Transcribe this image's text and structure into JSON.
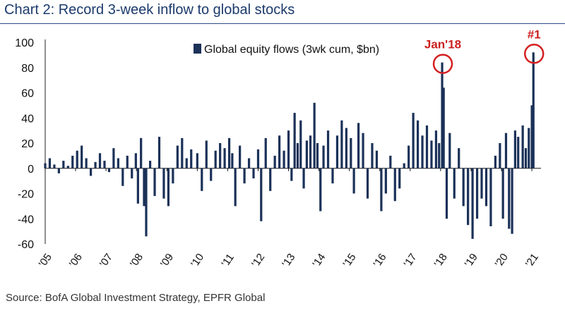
{
  "header": {
    "title": "Chart 2: Record 3-week inflow to global stocks"
  },
  "footer": {
    "source": "Source: BofA Global Investment Strategy, EPFR Global"
  },
  "colors": {
    "bar": "#1b3158",
    "annotation": "#d42020",
    "title": "#1b3a6b"
  },
  "chart_data": {
    "type": "bar",
    "legend": {
      "label": "Global equity flows (3wk cum, $bn)",
      "placement": "top-center"
    },
    "ylim": [
      -60,
      100
    ],
    "yticks": [
      100,
      80,
      60,
      40,
      20,
      0,
      -20,
      -40,
      -60
    ],
    "xlim": [
      2005.0,
      2021.3
    ],
    "xticks": [
      {
        "label": "'05",
        "year": 2005
      },
      {
        "label": "'06",
        "year": 2006
      },
      {
        "label": "'07",
        "year": 2007
      },
      {
        "label": "'08",
        "year": 2008
      },
      {
        "label": "'09",
        "year": 2009
      },
      {
        "label": "'10",
        "year": 2010
      },
      {
        "label": "'11",
        "year": 2011
      },
      {
        "label": "'12",
        "year": 2012
      },
      {
        "label": "'13",
        "year": 2013
      },
      {
        "label": "'14",
        "year": 2014
      },
      {
        "label": "'15",
        "year": 2015
      },
      {
        "label": "'16",
        "year": 2016
      },
      {
        "label": "'17",
        "year": 2017
      },
      {
        "label": "'18",
        "year": 2018
      },
      {
        "label": "'19",
        "year": 2019
      },
      {
        "label": "'20",
        "year": 2020
      },
      {
        "label": "'21",
        "year": 2021
      }
    ],
    "series": [
      {
        "values": [
          [
            2005.0,
            4
          ],
          [
            2005.15,
            8
          ],
          [
            2005.3,
            3
          ],
          [
            2005.45,
            -4
          ],
          [
            2005.6,
            6
          ],
          [
            2005.75,
            2
          ],
          [
            2005.9,
            10
          ],
          [
            2006.05,
            14
          ],
          [
            2006.2,
            18
          ],
          [
            2006.35,
            8
          ],
          [
            2006.5,
            -6
          ],
          [
            2006.65,
            5
          ],
          [
            2006.8,
            12
          ],
          [
            2006.95,
            6
          ],
          [
            2007.1,
            -3
          ],
          [
            2007.25,
            16
          ],
          [
            2007.4,
            8
          ],
          [
            2007.55,
            -14
          ],
          [
            2007.7,
            10
          ],
          [
            2007.85,
            -8
          ],
          [
            2007.98,
            12
          ],
          [
            2008.05,
            -28
          ],
          [
            2008.15,
            24
          ],
          [
            2008.25,
            -30
          ],
          [
            2008.32,
            -54
          ],
          [
            2008.45,
            6
          ],
          [
            2008.6,
            -22
          ],
          [
            2008.75,
            25
          ],
          [
            2008.9,
            -24
          ],
          [
            2009.05,
            -30
          ],
          [
            2009.2,
            -12
          ],
          [
            2009.35,
            18
          ],
          [
            2009.5,
            24
          ],
          [
            2009.65,
            8
          ],
          [
            2009.8,
            15
          ],
          [
            2010.0,
            12
          ],
          [
            2010.15,
            -18
          ],
          [
            2010.3,
            22
          ],
          [
            2010.45,
            -10
          ],
          [
            2010.6,
            14
          ],
          [
            2010.75,
            20
          ],
          [
            2010.9,
            16
          ],
          [
            2011.05,
            24
          ],
          [
            2011.15,
            12
          ],
          [
            2011.25,
            -30
          ],
          [
            2011.4,
            18
          ],
          [
            2011.55,
            -12
          ],
          [
            2011.7,
            8
          ],
          [
            2011.85,
            -8
          ],
          [
            2012.0,
            15
          ],
          [
            2012.1,
            -42
          ],
          [
            2012.25,
            24
          ],
          [
            2012.4,
            -18
          ],
          [
            2012.55,
            10
          ],
          [
            2012.7,
            26
          ],
          [
            2012.85,
            14
          ],
          [
            2013.0,
            30
          ],
          [
            2013.1,
            -10
          ],
          [
            2013.2,
            44
          ],
          [
            2013.3,
            20
          ],
          [
            2013.4,
            38
          ],
          [
            2013.5,
            -16
          ],
          [
            2013.6,
            22
          ],
          [
            2013.72,
            26
          ],
          [
            2013.85,
            52
          ],
          [
            2013.95,
            20
          ],
          [
            2014.05,
            -34
          ],
          [
            2014.15,
            18
          ],
          [
            2014.3,
            30
          ],
          [
            2014.45,
            -12
          ],
          [
            2014.6,
            26
          ],
          [
            2014.75,
            38
          ],
          [
            2014.9,
            32
          ],
          [
            2015.05,
            24
          ],
          [
            2015.15,
            -20
          ],
          [
            2015.3,
            36
          ],
          [
            2015.45,
            28
          ],
          [
            2015.6,
            -24
          ],
          [
            2015.75,
            20
          ],
          [
            2015.9,
            14
          ],
          [
            2016.05,
            -34
          ],
          [
            2016.2,
            -20
          ],
          [
            2016.35,
            10
          ],
          [
            2016.5,
            -26
          ],
          [
            2016.65,
            -16
          ],
          [
            2016.8,
            4
          ],
          [
            2016.95,
            18
          ],
          [
            2017.1,
            44
          ],
          [
            2017.25,
            38
          ],
          [
            2017.4,
            26
          ],
          [
            2017.55,
            34
          ],
          [
            2017.7,
            22
          ],
          [
            2017.85,
            30
          ],
          [
            2017.95,
            20
          ],
          [
            2018.05,
            84
          ],
          [
            2018.1,
            64
          ],
          [
            2018.2,
            -40
          ],
          [
            2018.3,
            28
          ],
          [
            2018.45,
            -24
          ],
          [
            2018.6,
            16
          ],
          [
            2018.75,
            -30
          ],
          [
            2018.9,
            -45
          ],
          [
            2019.05,
            -56
          ],
          [
            2019.2,
            -40
          ],
          [
            2019.35,
            -24
          ],
          [
            2019.5,
            -30
          ],
          [
            2019.65,
            -46
          ],
          [
            2019.8,
            10
          ],
          [
            2019.95,
            20
          ],
          [
            2020.05,
            -40
          ],
          [
            2020.15,
            28
          ],
          [
            2020.25,
            -48
          ],
          [
            2020.35,
            -52
          ],
          [
            2020.45,
            30
          ],
          [
            2020.55,
            25
          ],
          [
            2020.7,
            34
          ],
          [
            2020.8,
            16
          ],
          [
            2020.9,
            32
          ],
          [
            2021.0,
            50
          ],
          [
            2021.05,
            92
          ]
        ]
      }
    ],
    "annotations": [
      {
        "label": "Jan'18",
        "x": 2018.05,
        "y": 84
      },
      {
        "label": "#1",
        "x": 2021.05,
        "y": 92
      }
    ]
  }
}
